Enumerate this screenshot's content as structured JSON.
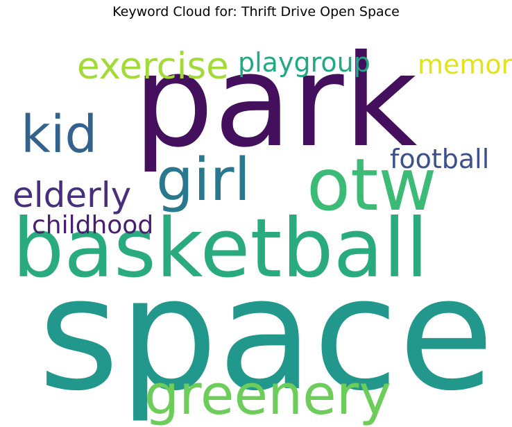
{
  "title": "Keyword Cloud for: Thrift Drive Open Space",
  "words": {
    "space": {
      "text": "space",
      "color": "#21988b"
    },
    "park": {
      "text": "park",
      "color": "#440f5c"
    },
    "basketball": {
      "text": "basketball",
      "color": "#2aab7f"
    },
    "otw": {
      "text": "otw",
      "color": "#3bbb75"
    },
    "greenery": {
      "text": "greenery",
      "color": "#6ccd5a"
    },
    "girl": {
      "text": "girl",
      "color": "#2a788e"
    },
    "kid": {
      "text": "kid",
      "color": "#33628d"
    },
    "exercise": {
      "text": "exercise",
      "color": "#a2da37"
    },
    "elderly": {
      "text": "elderly",
      "color": "#472f7d"
    },
    "playgroup": {
      "text": "playgroup",
      "color": "#22a884"
    },
    "memory": {
      "text": "memory",
      "color": "#e2e418"
    },
    "football": {
      "text": "football",
      "color": "#3c508b"
    },
    "childhood": {
      "text": "childhood",
      "color": "#481f70"
    }
  }
}
